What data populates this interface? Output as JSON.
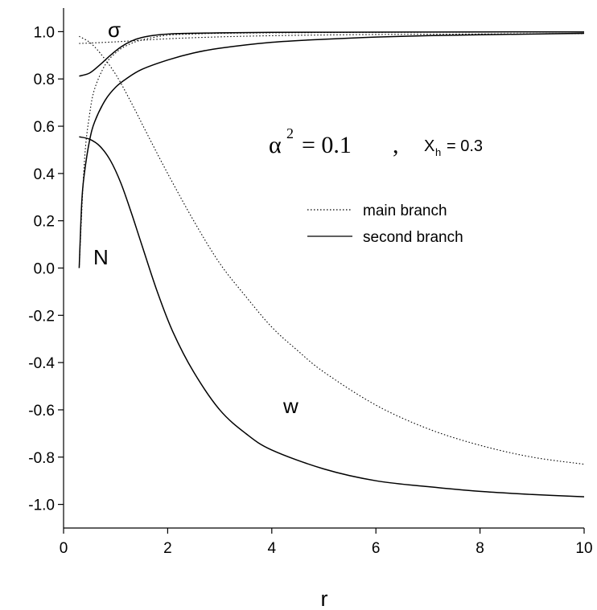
{
  "chart_data": {
    "type": "line",
    "xlabel": "r",
    "ylabel": "",
    "xlim": [
      0,
      10
    ],
    "ylim": [
      -1.1,
      1.1
    ],
    "x_ticks": [
      "0",
      "2",
      "4",
      "6",
      "8",
      "10"
    ],
    "x_tick_values": [
      0,
      2,
      4,
      6,
      8,
      10
    ],
    "y_ticks": [
      "1.0",
      "0.8",
      "0.6",
      "0.4",
      "0.2",
      "0.0",
      "-0.2",
      "-0.4",
      "-0.6",
      "-0.8",
      "-1.0"
    ],
    "y_tick_values": [
      1.0,
      0.8,
      0.6,
      0.4,
      0.2,
      0.0,
      -0.2,
      -0.4,
      -0.6,
      -0.8,
      -1.0
    ],
    "grid": false,
    "legend": {
      "placement": "center-right",
      "entries": [
        {
          "label": "main branch",
          "style": "dotted"
        },
        {
          "label": "second branch",
          "style": "solid"
        }
      ]
    },
    "annotation": {
      "alpha_symbol": "α",
      "alpha_power": "2",
      "alpha_value": "= 0.1",
      "separator": ",",
      "x_symbol": "X",
      "x_subscript": "h",
      "x_value": "= 0.3"
    },
    "curve_labels": {
      "sigma": "σ",
      "N": "N",
      "w": "w"
    },
    "series": [
      {
        "label": "σ",
        "style": "dotted",
        "x": [
          0.3,
          1,
          2,
          3,
          4,
          5,
          6,
          7,
          8,
          9,
          10
        ],
        "y": [
          0.95,
          0.957,
          0.97,
          0.978,
          0.983,
          0.986,
          0.988,
          0.989,
          0.99,
          0.991,
          0.992
        ]
      },
      {
        "label": "σ",
        "style": "solid",
        "x": [
          0.3,
          0.5,
          0.7,
          0.9,
          1.1,
          1.3,
          1.5,
          1.8,
          2.2,
          3,
          4,
          6,
          8,
          10
        ],
        "y": [
          0.812,
          0.825,
          0.86,
          0.9,
          0.935,
          0.96,
          0.975,
          0.986,
          0.992,
          0.995,
          0.997,
          0.998,
          0.999,
          0.999
        ]
      },
      {
        "label": "N",
        "style": "dotted",
        "x": [
          0.3,
          0.4,
          0.5,
          0.6,
          0.8,
          1,
          1.2,
          1.5,
          2,
          2.5,
          3,
          4,
          5,
          6,
          8,
          10
        ],
        "y": [
          0.0,
          0.45,
          0.65,
          0.76,
          0.86,
          0.91,
          0.94,
          0.965,
          0.985,
          0.99,
          0.993,
          0.995,
          0.996,
          0.997,
          0.998,
          0.998
        ]
      },
      {
        "label": "N",
        "style": "solid",
        "x": [
          0.3,
          0.35,
          0.4,
          0.5,
          0.6,
          0.8,
          1,
          1.2,
          1.5,
          2,
          2.5,
          3,
          4,
          5,
          6,
          7,
          8,
          9,
          10
        ],
        "y": [
          0.0,
          0.28,
          0.4,
          0.54,
          0.62,
          0.71,
          0.765,
          0.8,
          0.84,
          0.88,
          0.91,
          0.93,
          0.955,
          0.968,
          0.977,
          0.983,
          0.987,
          0.99,
          0.993
        ]
      },
      {
        "label": "w",
        "style": "dotted",
        "x": [
          0.3,
          0.5,
          0.7,
          1,
          1.3,
          1.6,
          2,
          2.5,
          3,
          3.5,
          4,
          4.5,
          5,
          6,
          7,
          8,
          9,
          10
        ],
        "y": [
          0.98,
          0.955,
          0.91,
          0.82,
          0.7,
          0.57,
          0.4,
          0.2,
          0.02,
          -0.12,
          -0.25,
          -0.35,
          -0.44,
          -0.58,
          -0.68,
          -0.75,
          -0.8,
          -0.83
        ]
      },
      {
        "label": "w",
        "style": "solid",
        "x": [
          0.3,
          0.5,
          0.7,
          0.9,
          1.1,
          1.3,
          1.5,
          1.8,
          2.1,
          2.5,
          3,
          3.5,
          4,
          5,
          6,
          7,
          8,
          9,
          10
        ],
        "y": [
          0.555,
          0.545,
          0.515,
          0.455,
          0.36,
          0.235,
          0.1,
          -0.1,
          -0.27,
          -0.44,
          -0.6,
          -0.7,
          -0.77,
          -0.85,
          -0.9,
          -0.925,
          -0.945,
          -0.958,
          -0.968
        ]
      }
    ]
  }
}
